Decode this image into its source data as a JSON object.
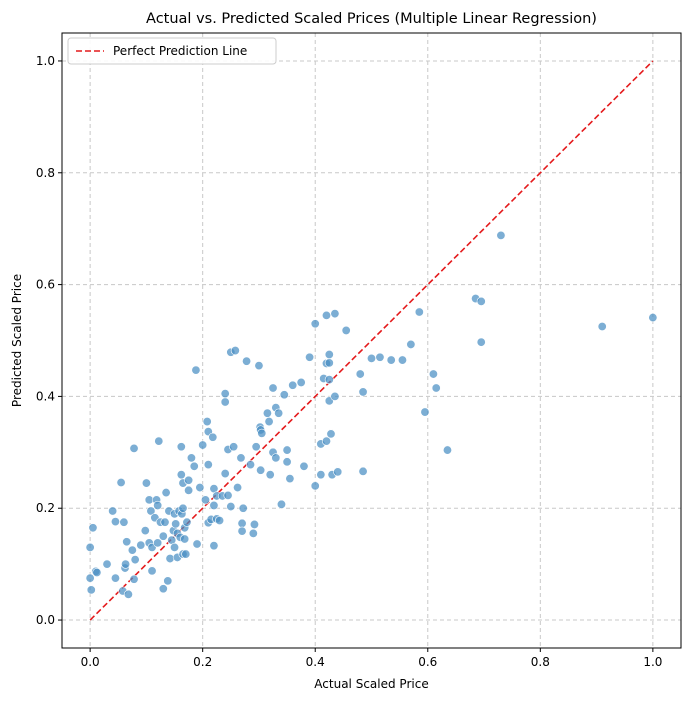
{
  "chart_data": {
    "type": "scatter",
    "title": "Actual vs. Predicted Scaled Prices (Multiple Linear Regression)",
    "xlabel": "Actual Scaled Price",
    "ylabel": "Predicted Scaled Price",
    "xlim": [
      -0.05,
      1.05
    ],
    "ylim": [
      -0.05,
      1.05
    ],
    "xticks": [
      "0.0",
      "0.2",
      "0.4",
      "0.6",
      "0.8",
      "1.0"
    ],
    "yticks": [
      "0.0",
      "0.2",
      "0.4",
      "0.6",
      "0.8",
      "1.0"
    ],
    "grid": true,
    "legend_position": "top-left",
    "reference_line": {
      "name": "Perfect Prediction Line",
      "x": [
        0,
        1
      ],
      "y": [
        0,
        1
      ],
      "color": "#e41a1c",
      "style": "dashed"
    },
    "points_color": "#4a8fc4",
    "points": [
      [
        0.0,
        0.13
      ],
      [
        0.0,
        0.075
      ],
      [
        0.002,
        0.054
      ],
      [
        0.005,
        0.165
      ],
      [
        0.01,
        0.087
      ],
      [
        0.012,
        0.085
      ],
      [
        0.03,
        0.1
      ],
      [
        0.04,
        0.195
      ],
      [
        0.045,
        0.176
      ],
      [
        0.045,
        0.075
      ],
      [
        0.055,
        0.246
      ],
      [
        0.058,
        0.052
      ],
      [
        0.06,
        0.175
      ],
      [
        0.062,
        0.093
      ],
      [
        0.063,
        0.1
      ],
      [
        0.065,
        0.14
      ],
      [
        0.068,
        0.046
      ],
      [
        0.075,
        0.125
      ],
      [
        0.078,
        0.307
      ],
      [
        0.078,
        0.073
      ],
      [
        0.08,
        0.108
      ],
      [
        0.09,
        0.134
      ],
      [
        0.098,
        0.16
      ],
      [
        0.1,
        0.245
      ],
      [
        0.105,
        0.215
      ],
      [
        0.105,
        0.138
      ],
      [
        0.108,
        0.195
      ],
      [
        0.11,
        0.088
      ],
      [
        0.11,
        0.13
      ],
      [
        0.115,
        0.183
      ],
      [
        0.118,
        0.215
      ],
      [
        0.12,
        0.205
      ],
      [
        0.12,
        0.138
      ],
      [
        0.122,
        0.32
      ],
      [
        0.125,
        0.175
      ],
      [
        0.13,
        0.15
      ],
      [
        0.13,
        0.056
      ],
      [
        0.133,
        0.175
      ],
      [
        0.135,
        0.228
      ],
      [
        0.138,
        0.07
      ],
      [
        0.14,
        0.195
      ],
      [
        0.142,
        0.11
      ],
      [
        0.145,
        0.143
      ],
      [
        0.148,
        0.16
      ],
      [
        0.15,
        0.19
      ],
      [
        0.15,
        0.13
      ],
      [
        0.152,
        0.172
      ],
      [
        0.155,
        0.112
      ],
      [
        0.155,
        0.155
      ],
      [
        0.158,
        0.195
      ],
      [
        0.16,
        0.148
      ],
      [
        0.162,
        0.26
      ],
      [
        0.162,
        0.31
      ],
      [
        0.163,
        0.19
      ],
      [
        0.165,
        0.118
      ],
      [
        0.165,
        0.2
      ],
      [
        0.165,
        0.245
      ],
      [
        0.168,
        0.165
      ],
      [
        0.168,
        0.145
      ],
      [
        0.17,
        0.118
      ],
      [
        0.172,
        0.175
      ],
      [
        0.175,
        0.25
      ],
      [
        0.175,
        0.232
      ],
      [
        0.18,
        0.29
      ],
      [
        0.185,
        0.275
      ],
      [
        0.188,
        0.447
      ],
      [
        0.19,
        0.136
      ],
      [
        0.195,
        0.237
      ],
      [
        0.2,
        0.313
      ],
      [
        0.205,
        0.215
      ],
      [
        0.208,
        0.355
      ],
      [
        0.21,
        0.278
      ],
      [
        0.21,
        0.174
      ],
      [
        0.21,
        0.337
      ],
      [
        0.215,
        0.18
      ],
      [
        0.218,
        0.327
      ],
      [
        0.22,
        0.235
      ],
      [
        0.22,
        0.133
      ],
      [
        0.22,
        0.205
      ],
      [
        0.225,
        0.222
      ],
      [
        0.225,
        0.181
      ],
      [
        0.23,
        0.178
      ],
      [
        0.235,
        0.222
      ],
      [
        0.24,
        0.39
      ],
      [
        0.24,
        0.405
      ],
      [
        0.24,
        0.262
      ],
      [
        0.245,
        0.305
      ],
      [
        0.245,
        0.223
      ],
      [
        0.25,
        0.479
      ],
      [
        0.25,
        0.203
      ],
      [
        0.255,
        0.31
      ],
      [
        0.258,
        0.482
      ],
      [
        0.262,
        0.237
      ],
      [
        0.268,
        0.29
      ],
      [
        0.27,
        0.173
      ],
      [
        0.27,
        0.159
      ],
      [
        0.272,
        0.2
      ],
      [
        0.278,
        0.463
      ],
      [
        0.285,
        0.278
      ],
      [
        0.29,
        0.155
      ],
      [
        0.292,
        0.171
      ],
      [
        0.295,
        0.31
      ],
      [
        0.3,
        0.455
      ],
      [
        0.302,
        0.345
      ],
      [
        0.303,
        0.34
      ],
      [
        0.303,
        0.268
      ],
      [
        0.305,
        0.334
      ],
      [
        0.315,
        0.37
      ],
      [
        0.318,
        0.355
      ],
      [
        0.32,
        0.26
      ],
      [
        0.325,
        0.415
      ],
      [
        0.325,
        0.3
      ],
      [
        0.33,
        0.38
      ],
      [
        0.33,
        0.29
      ],
      [
        0.335,
        0.37
      ],
      [
        0.34,
        0.207
      ],
      [
        0.345,
        0.403
      ],
      [
        0.35,
        0.283
      ],
      [
        0.35,
        0.304
      ],
      [
        0.355,
        0.253
      ],
      [
        0.36,
        0.42
      ],
      [
        0.375,
        0.425
      ],
      [
        0.38,
        0.275
      ],
      [
        0.39,
        0.47
      ],
      [
        0.4,
        0.24
      ],
      [
        0.4,
        0.53
      ],
      [
        0.41,
        0.315
      ],
      [
        0.41,
        0.26
      ],
      [
        0.415,
        0.432
      ],
      [
        0.42,
        0.545
      ],
      [
        0.42,
        0.459
      ],
      [
        0.42,
        0.32
      ],
      [
        0.425,
        0.475
      ],
      [
        0.425,
        0.392
      ],
      [
        0.425,
        0.46
      ],
      [
        0.425,
        0.43
      ],
      [
        0.428,
        0.333
      ],
      [
        0.43,
        0.26
      ],
      [
        0.435,
        0.548
      ],
      [
        0.435,
        0.4
      ],
      [
        0.44,
        0.265
      ],
      [
        0.455,
        0.518
      ],
      [
        0.48,
        0.44
      ],
      [
        0.485,
        0.408
      ],
      [
        0.485,
        0.266
      ],
      [
        0.5,
        0.468
      ],
      [
        0.515,
        0.47
      ],
      [
        0.535,
        0.465
      ],
      [
        0.555,
        0.465
      ],
      [
        0.57,
        0.493
      ],
      [
        0.585,
        0.551
      ],
      [
        0.595,
        0.372
      ],
      [
        0.61,
        0.44
      ],
      [
        0.615,
        0.415
      ],
      [
        0.635,
        0.304
      ],
      [
        0.685,
        0.575
      ],
      [
        0.695,
        0.497
      ],
      [
        0.695,
        0.57
      ],
      [
        0.73,
        0.688
      ],
      [
        0.91,
        0.525
      ],
      [
        1.0,
        0.541
      ]
    ]
  }
}
